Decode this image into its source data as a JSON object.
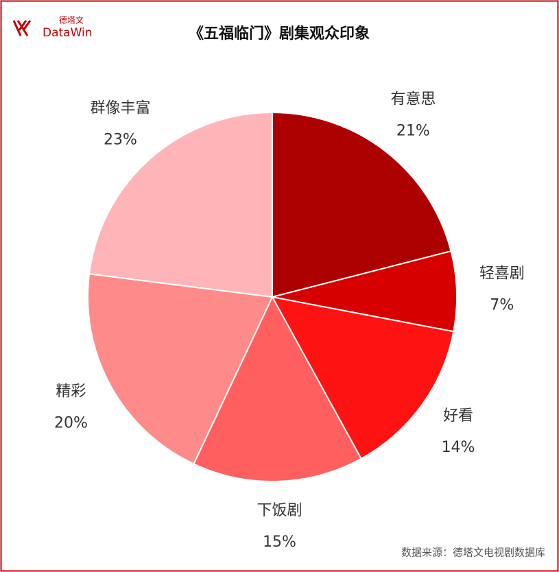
{
  "logo": {
    "cn": "德塔文",
    "en": "DataWin"
  },
  "chart_data": {
    "type": "pie",
    "title": "《五福临门》剧集观众印象",
    "categories": [
      "有意思",
      "轻喜剧",
      "好看",
      "下饭剧",
      "精彩",
      "群像丰富"
    ],
    "values": [
      21,
      7,
      14,
      15,
      20,
      23
    ],
    "value_labels": [
      "21%",
      "7%",
      "14%",
      "15%",
      "20%",
      "23%"
    ],
    "colors": [
      "#ad0000",
      "#d60000",
      "#ff1212",
      "#ff5f5f",
      "#ff8a8a",
      "#ffb5b8"
    ],
    "source": "数据来源：德塔文电视剧数据库"
  }
}
